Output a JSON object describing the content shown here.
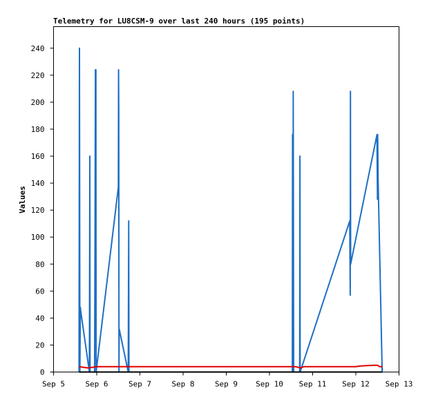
{
  "chart_data": {
    "type": "line",
    "title": "Telemetry for LU8CSM-9 over last 240 hours (195 points)",
    "ylabel": "Values",
    "xlabel": "",
    "x_ticks": [
      "Sep 5",
      "Sep 6",
      "Sep 7",
      "Sep 8",
      "Sep 9",
      "Sep 10",
      "Sep 11",
      "Sep 12",
      "Sep 13"
    ],
    "xlim": [
      5.0,
      13.0
    ],
    "y_ticks": [
      0,
      20,
      40,
      60,
      80,
      100,
      120,
      140,
      160,
      180,
      200,
      220,
      240
    ],
    "ylim": [
      0,
      256
    ],
    "grid": false,
    "legend": "none",
    "series": [
      {
        "color": "#1f6fc4",
        "points": [
          [
            5.59,
            0
          ],
          [
            5.6,
            240
          ],
          [
            5.605,
            128
          ],
          [
            5.61,
            0
          ],
          [
            5.62,
            48
          ],
          [
            5.63,
            45
          ],
          [
            5.83,
            0
          ],
          [
            5.835,
            80
          ],
          [
            5.84,
            160
          ],
          [
            5.845,
            0
          ],
          [
            5.95,
            0
          ],
          [
            5.96,
            97
          ],
          [
            5.97,
            224
          ],
          [
            5.98,
            224
          ],
          [
            5.985,
            0
          ],
          [
            6.5,
            137
          ],
          [
            6.505,
            224
          ],
          [
            6.51,
            192
          ],
          [
            6.515,
            0
          ],
          [
            6.52,
            32
          ],
          [
            6.73,
            0
          ],
          [
            6.74,
            112
          ],
          [
            6.745,
            0
          ],
          [
            10.53,
            0
          ],
          [
            10.535,
            176
          ],
          [
            10.545,
            0
          ],
          [
            10.55,
            208
          ],
          [
            10.555,
            105
          ],
          [
            10.56,
            0
          ],
          [
            10.7,
            0
          ],
          [
            10.705,
            160
          ],
          [
            10.71,
            0
          ],
          [
            11.86,
            112
          ],
          [
            11.87,
            57
          ],
          [
            11.875,
            208
          ],
          [
            11.88,
            80
          ],
          [
            12.49,
            176
          ],
          [
            12.5,
            128
          ],
          [
            12.505,
            176
          ],
          [
            12.515,
            144
          ],
          [
            12.6,
            15
          ],
          [
            12.61,
            0
          ],
          [
            12.615,
            3
          ]
        ]
      },
      {
        "color": "#e00000",
        "points": [
          [
            5.59,
            4
          ],
          [
            5.8,
            3
          ],
          [
            6.0,
            4
          ],
          [
            7.0,
            4
          ],
          [
            9.0,
            4
          ],
          [
            10.6,
            4
          ],
          [
            10.72,
            3
          ],
          [
            10.8,
            4
          ],
          [
            11.0,
            4
          ],
          [
            12.0,
            4
          ],
          [
            12.1,
            4.5
          ],
          [
            12.4,
            5
          ],
          [
            12.5,
            5
          ],
          [
            12.55,
            4
          ],
          [
            12.615,
            4
          ]
        ]
      },
      {
        "color": "#000000",
        "points": [
          [
            5.59,
            0
          ],
          [
            12.615,
            0
          ]
        ]
      }
    ]
  }
}
